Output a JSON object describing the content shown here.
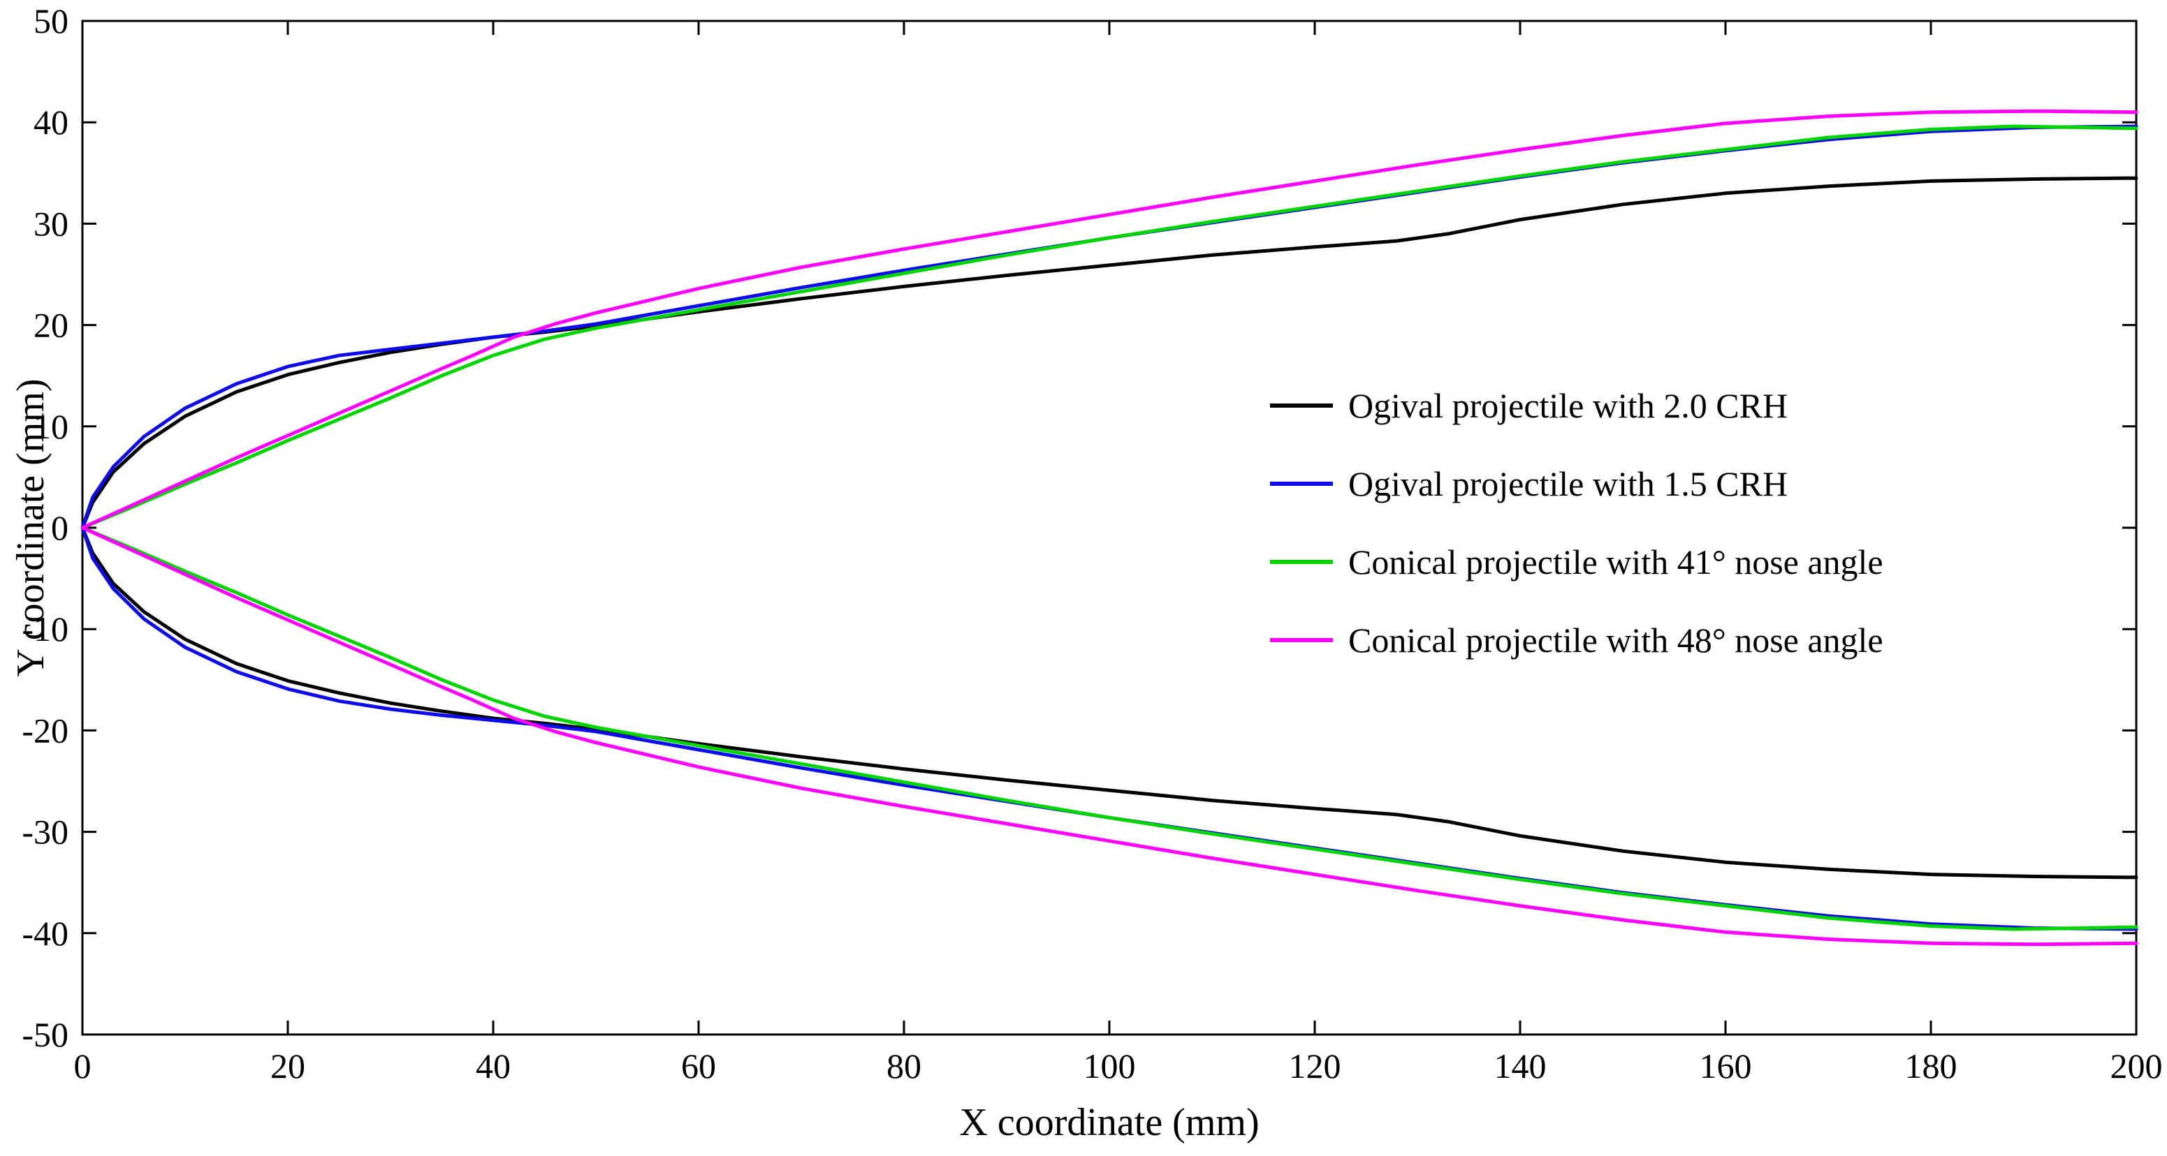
{
  "figure": {
    "background": "#ffffff"
  },
  "chart_data": {
    "type": "line",
    "title": "",
    "xlabel": "X coordinate (mm)",
    "ylabel": "Y coordinate (mm)",
    "xlim": [
      0,
      200
    ],
    "ylim": [
      -50,
      50
    ],
    "xticks": [
      0,
      20,
      40,
      60,
      80,
      100,
      120,
      140,
      160,
      180,
      200
    ],
    "yticks": [
      -50,
      -40,
      -30,
      -20,
      -10,
      0,
      10,
      20,
      30,
      40,
      50
    ],
    "grid": false,
    "box": true,
    "legend_position": "middle-right",
    "axis_color": "#000000",
    "series": [
      {
        "name": "Ogival projectile with 2.0 CRH",
        "color": "#000000",
        "upper": [
          [
            0,
            0
          ],
          [
            1,
            2.5
          ],
          [
            3,
            5.5
          ],
          [
            6,
            8.3
          ],
          [
            10,
            11
          ],
          [
            15,
            13.4
          ],
          [
            20,
            15.1
          ],
          [
            25,
            16.3
          ],
          [
            30,
            17.3
          ],
          [
            35,
            18.1
          ],
          [
            40,
            18.8
          ],
          [
            45,
            19.3
          ],
          [
            50,
            19.9
          ],
          [
            60,
            21.3
          ],
          [
            70,
            22.6
          ],
          [
            80,
            23.8
          ],
          [
            90,
            24.9
          ],
          [
            100,
            25.9
          ],
          [
            110,
            26.9
          ],
          [
            120,
            27.7
          ],
          [
            128,
            28.3
          ],
          [
            133,
            29.0
          ],
          [
            140,
            30.4
          ],
          [
            150,
            31.9
          ],
          [
            160,
            33.0
          ],
          [
            170,
            33.7
          ],
          [
            180,
            34.2
          ],
          [
            190,
            34.4
          ],
          [
            200,
            34.5
          ]
        ],
        "lower": [
          [
            0,
            0
          ],
          [
            1,
            -2.5
          ],
          [
            3,
            -5.5
          ],
          [
            6,
            -8.3
          ],
          [
            10,
            -11
          ],
          [
            15,
            -13.4
          ],
          [
            20,
            -15.1
          ],
          [
            25,
            -16.3
          ],
          [
            30,
            -17.3
          ],
          [
            35,
            -18.1
          ],
          [
            40,
            -18.8
          ],
          [
            45,
            -19.3
          ],
          [
            50,
            -19.9
          ],
          [
            60,
            -21.3
          ],
          [
            70,
            -22.6
          ],
          [
            80,
            -23.8
          ],
          [
            90,
            -24.9
          ],
          [
            100,
            -25.9
          ],
          [
            110,
            -26.9
          ],
          [
            120,
            -27.7
          ],
          [
            128,
            -28.3
          ],
          [
            133,
            -29.0
          ],
          [
            140,
            -30.4
          ],
          [
            150,
            -31.9
          ],
          [
            160,
            -33.0
          ],
          [
            170,
            -33.7
          ],
          [
            180,
            -34.2
          ],
          [
            190,
            -34.4
          ],
          [
            200,
            -34.5
          ]
        ]
      },
      {
        "name": "Ogival projectile with 1.5 CRH",
        "color": "#0b0bee",
        "upper": [
          [
            0,
            0
          ],
          [
            1,
            3
          ],
          [
            3,
            6
          ],
          [
            6,
            9
          ],
          [
            10,
            11.8
          ],
          [
            15,
            14.2
          ],
          [
            20,
            15.9
          ],
          [
            25,
            17.0
          ],
          [
            30,
            17.6
          ],
          [
            35,
            18.2
          ],
          [
            40,
            18.8
          ],
          [
            45,
            19.4
          ],
          [
            50,
            20.1
          ],
          [
            60,
            21.9
          ],
          [
            70,
            23.7
          ],
          [
            80,
            25.4
          ],
          [
            90,
            27.0
          ],
          [
            100,
            28.6
          ],
          [
            110,
            30.1
          ],
          [
            120,
            31.6
          ],
          [
            130,
            33.1
          ],
          [
            140,
            34.6
          ],
          [
            150,
            36.0
          ],
          [
            160,
            37.2
          ],
          [
            170,
            38.3
          ],
          [
            180,
            39.1
          ],
          [
            190,
            39.5
          ],
          [
            200,
            39.6
          ]
        ],
        "lower": [
          [
            0,
            0
          ],
          [
            1,
            -3
          ],
          [
            3,
            -6
          ],
          [
            6,
            -9
          ],
          [
            10,
            -11.8
          ],
          [
            15,
            -14.2
          ],
          [
            20,
            -15.9
          ],
          [
            25,
            -17.1
          ],
          [
            30,
            -17.9
          ],
          [
            35,
            -18.5
          ],
          [
            40,
            -19.0
          ],
          [
            45,
            -19.5
          ],
          [
            50,
            -20.1
          ],
          [
            60,
            -21.9
          ],
          [
            70,
            -23.7
          ],
          [
            80,
            -25.4
          ],
          [
            90,
            -27.0
          ],
          [
            100,
            -28.6
          ],
          [
            110,
            -30.1
          ],
          [
            120,
            -31.6
          ],
          [
            130,
            -33.1
          ],
          [
            140,
            -34.6
          ],
          [
            150,
            -36.0
          ],
          [
            160,
            -37.2
          ],
          [
            170,
            -38.3
          ],
          [
            180,
            -39.1
          ],
          [
            190,
            -39.5
          ],
          [
            200,
            -39.6
          ]
        ]
      },
      {
        "name": "Conical projectile with 41° nose angle",
        "color": "#00d500",
        "upper": [
          [
            0,
            0
          ],
          [
            5,
            2.1
          ],
          [
            10,
            4.3
          ],
          [
            15,
            6.4
          ],
          [
            20,
            8.6
          ],
          [
            25,
            10.7
          ],
          [
            30,
            12.8
          ],
          [
            35,
            15.0
          ],
          [
            40,
            17.0
          ],
          [
            45,
            18.6
          ],
          [
            50,
            19.7
          ],
          [
            55,
            20.6
          ],
          [
            60,
            21.5
          ],
          [
            70,
            23.3
          ],
          [
            80,
            25.1
          ],
          [
            90,
            26.9
          ],
          [
            100,
            28.6
          ],
          [
            110,
            30.2
          ],
          [
            120,
            31.7
          ],
          [
            130,
            33.2
          ],
          [
            140,
            34.7
          ],
          [
            150,
            36.1
          ],
          [
            160,
            37.3
          ],
          [
            170,
            38.5
          ],
          [
            180,
            39.3
          ],
          [
            188,
            39.6
          ],
          [
            195,
            39.5
          ],
          [
            200,
            39.4
          ]
        ],
        "lower": [
          [
            0,
            0
          ],
          [
            5,
            -2.1
          ],
          [
            10,
            -4.3
          ],
          [
            15,
            -6.4
          ],
          [
            20,
            -8.6
          ],
          [
            25,
            -10.7
          ],
          [
            30,
            -12.8
          ],
          [
            35,
            -15.0
          ],
          [
            40,
            -17.0
          ],
          [
            45,
            -18.6
          ],
          [
            50,
            -19.7
          ],
          [
            55,
            -20.6
          ],
          [
            60,
            -21.5
          ],
          [
            70,
            -23.3
          ],
          [
            80,
            -25.1
          ],
          [
            90,
            -26.9
          ],
          [
            100,
            -28.6
          ],
          [
            110,
            -30.2
          ],
          [
            120,
            -31.7
          ],
          [
            130,
            -33.2
          ],
          [
            140,
            -34.7
          ],
          [
            150,
            -36.1
          ],
          [
            160,
            -37.3
          ],
          [
            170,
            -38.5
          ],
          [
            180,
            -39.3
          ],
          [
            188,
            -39.6
          ],
          [
            195,
            -39.5
          ],
          [
            200,
            -39.4
          ]
        ]
      },
      {
        "name": "Conical projectile with 48° nose angle",
        "color": "#ff00ff",
        "upper": [
          [
            0,
            0
          ],
          [
            5,
            2.3
          ],
          [
            10,
            4.6
          ],
          [
            15,
            6.9
          ],
          [
            20,
            9.1
          ],
          [
            25,
            11.3
          ],
          [
            30,
            13.5
          ],
          [
            35,
            15.7
          ],
          [
            38,
            17.0
          ],
          [
            42,
            18.8
          ],
          [
            46,
            20.1
          ],
          [
            50,
            21.2
          ],
          [
            60,
            23.6
          ],
          [
            70,
            25.7
          ],
          [
            80,
            27.5
          ],
          [
            90,
            29.2
          ],
          [
            100,
            30.9
          ],
          [
            110,
            32.6
          ],
          [
            120,
            34.2
          ],
          [
            130,
            35.8
          ],
          [
            140,
            37.3
          ],
          [
            150,
            38.7
          ],
          [
            160,
            39.9
          ],
          [
            170,
            40.6
          ],
          [
            180,
            41.0
          ],
          [
            190,
            41.1
          ],
          [
            200,
            41.0
          ]
        ],
        "lower": [
          [
            0,
            0
          ],
          [
            5,
            -2.3
          ],
          [
            10,
            -4.6
          ],
          [
            15,
            -6.9
          ],
          [
            20,
            -9.1
          ],
          [
            25,
            -11.3
          ],
          [
            30,
            -13.5
          ],
          [
            35,
            -15.7
          ],
          [
            38,
            -17.0
          ],
          [
            42,
            -18.8
          ],
          [
            46,
            -20.1
          ],
          [
            50,
            -21.2
          ],
          [
            60,
            -23.6
          ],
          [
            70,
            -25.7
          ],
          [
            80,
            -27.5
          ],
          [
            90,
            -29.2
          ],
          [
            100,
            -30.9
          ],
          [
            110,
            -32.6
          ],
          [
            120,
            -34.2
          ],
          [
            130,
            -35.8
          ],
          [
            140,
            -37.3
          ],
          [
            150,
            -38.7
          ],
          [
            160,
            -39.9
          ],
          [
            170,
            -40.6
          ],
          [
            180,
            -41.0
          ],
          [
            190,
            -41.1
          ],
          [
            200,
            -41.0
          ]
        ]
      }
    ]
  }
}
